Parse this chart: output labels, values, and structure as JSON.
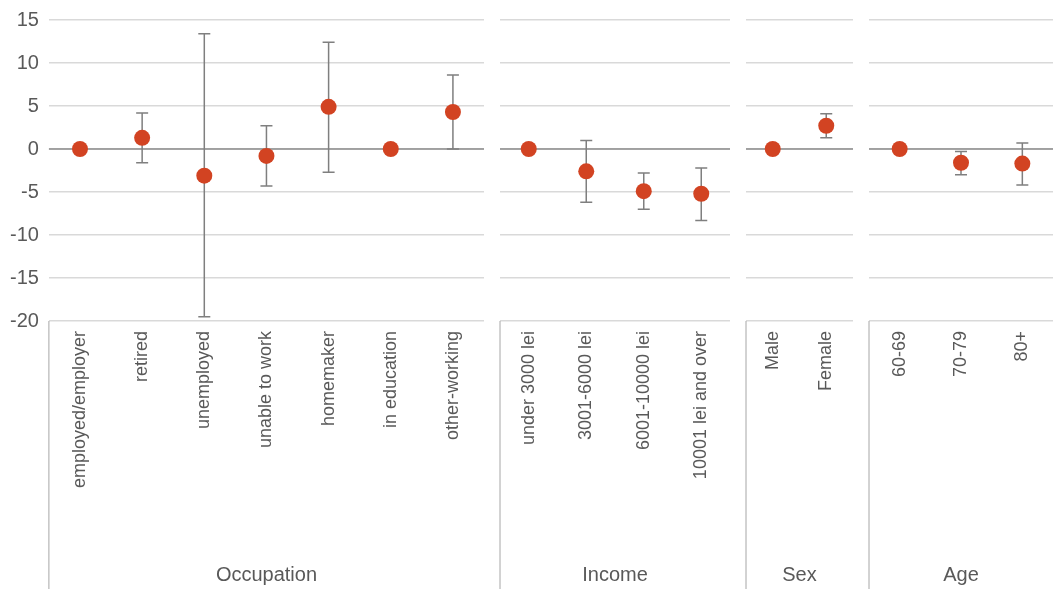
{
  "chart_data": [
    {
      "type": "scatter",
      "xlabel": "Occupation",
      "categories": [
        "employed/employer",
        "retired",
        "unemployed",
        "unable to work",
        "homemaker",
        "in education",
        "other-working"
      ],
      "series": [
        {
          "color": "#d24322",
          "values": [
            0,
            1.3,
            -3.1,
            -0.8,
            4.9,
            0,
            4.3
          ],
          "errors": [
            null,
            [
              -1.6,
              4.2
            ],
            [
              -19.5,
              13.4
            ],
            [
              -4.3,
              2.7
            ],
            [
              -2.7,
              12.4
            ],
            null,
            [
              0,
              8.6
            ]
          ]
        }
      ],
      "ylim": [
        -20,
        15
      ],
      "yticks": [
        -20,
        -15,
        -10,
        -5,
        0,
        5,
        10,
        15
      ],
      "grid": "y",
      "marker": "circle",
      "legend": false,
      "ref_lines": [
        {
          "axis": "y",
          "value": 0,
          "color": "#8c8c8c"
        }
      ]
    },
    {
      "type": "scatter",
      "xlabel": "Income",
      "categories": [
        "under 3000 lei",
        "3001-6000 lei",
        "6001-10000 lei",
        "10001 lei and over"
      ],
      "series": [
        {
          "color": "#d24322",
          "values": [
            0,
            -2.6,
            -4.9,
            -5.2
          ],
          "errors": [
            null,
            [
              -6.2,
              1.0
            ],
            [
              -7.0,
              -2.8
            ],
            [
              -8.3,
              -2.2
            ]
          ]
        }
      ],
      "ylim": [
        -20,
        15
      ],
      "yticks": [
        -20,
        -15,
        -10,
        -5,
        0,
        5,
        10,
        15
      ],
      "tick_labels": "x",
      "grid": "y",
      "marker": "circle",
      "legend": false,
      "ref_lines": [
        {
          "axis": "y",
          "value": 0,
          "color": "#8c8c8c"
        }
      ]
    },
    {
      "type": "scatter",
      "xlabel": "Sex",
      "categories": [
        "Male",
        "Female"
      ],
      "series": [
        {
          "color": "#d24322",
          "values": [
            0,
            2.7
          ],
          "errors": [
            null,
            [
              1.3,
              4.1
            ]
          ]
        }
      ],
      "ylim": [
        -20,
        15
      ],
      "yticks": [
        -20,
        -15,
        -10,
        -5,
        0,
        5,
        10,
        15
      ],
      "tick_labels": "x",
      "grid": "y",
      "marker": "circle",
      "legend": false,
      "ref_lines": [
        {
          "axis": "y",
          "value": 0,
          "color": "#8c8c8c"
        }
      ]
    },
    {
      "type": "scatter",
      "xlabel": "Age",
      "categories": [
        "60-69",
        "70-79",
        "80+"
      ],
      "series": [
        {
          "color": "#d24322",
          "values": [
            0,
            -1.6,
            -1.7
          ],
          "errors": [
            null,
            [
              -3.0,
              -0.3
            ],
            [
              -4.2,
              0.7
            ]
          ]
        }
      ],
      "ylim": [
        -20,
        15
      ],
      "yticks": [
        -20,
        -15,
        -10,
        -5,
        0,
        5,
        10,
        15
      ],
      "tick_labels": "x",
      "grid": "y",
      "marker": "circle",
      "legend": false,
      "ref_lines": [
        {
          "axis": "y",
          "value": 0,
          "color": "#8c8c8c"
        }
      ]
    }
  ]
}
